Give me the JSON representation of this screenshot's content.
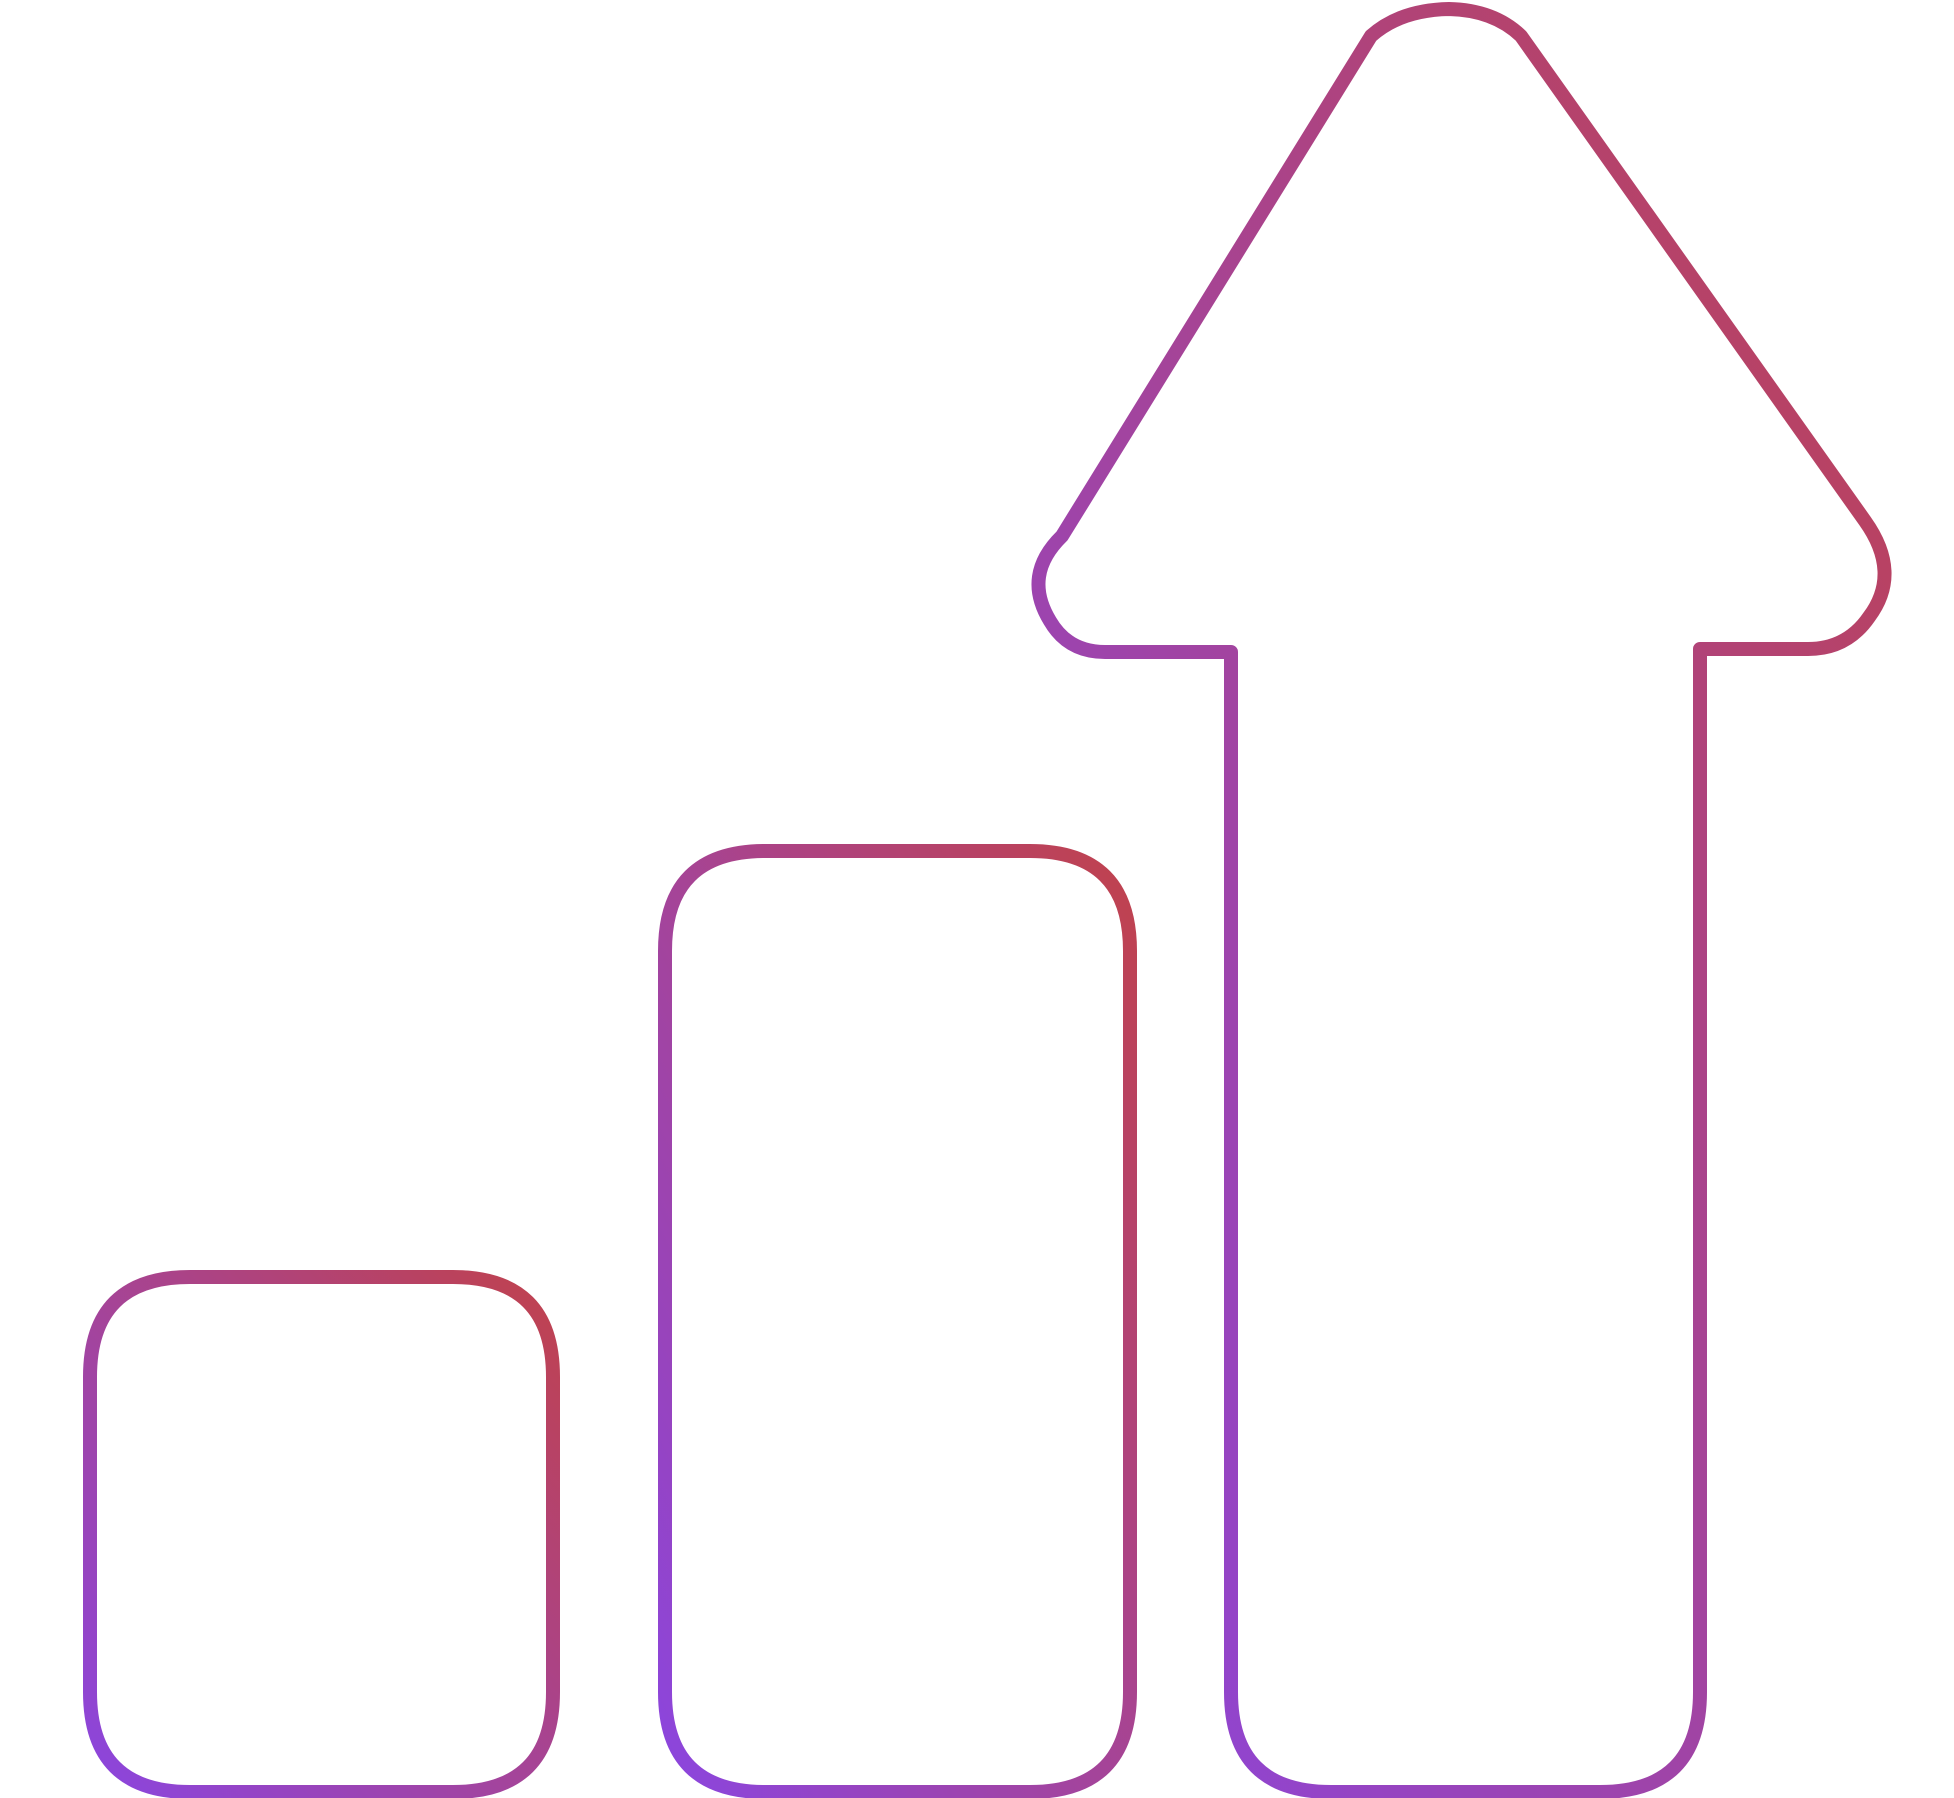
{
  "icon": {
    "name": "growth-chart-arrow-icon",
    "parts": [
      "small-bar",
      "medium-bar",
      "up-arrow"
    ]
  },
  "colors": {
    "background": "#ffffff",
    "gradient_start": "#8b45df",
    "gradient_end": "#c0424d"
  }
}
